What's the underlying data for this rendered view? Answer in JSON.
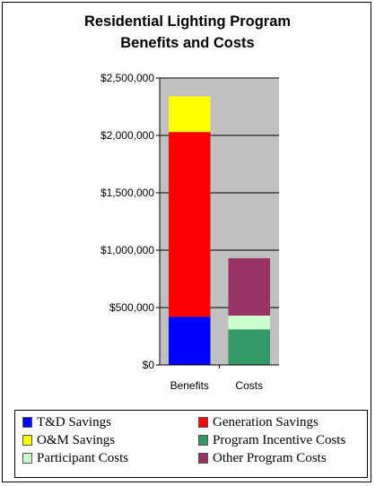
{
  "chart_data": {
    "type": "bar",
    "stacked": true,
    "title_lines": [
      "Residential Lighting Program",
      "Benefits and Costs"
    ],
    "categories": [
      "Benefits",
      "Costs"
    ],
    "y_ticks": [
      "$0",
      "$500,000",
      "$1,000,000",
      "$1,500,000",
      "$2,000,000",
      "$2,500,000"
    ],
    "ylim": [
      0,
      2500000
    ],
    "grid": true,
    "legend_position": "bottom",
    "series": [
      {
        "name": "T&D Savings",
        "color": "#0000ff",
        "values": [
          420000,
          0
        ]
      },
      {
        "name": "Generation Savings",
        "color": "#ff0000",
        "values": [
          1610000,
          0
        ]
      },
      {
        "name": "O&M Savings",
        "color": "#ffff00",
        "values": [
          310000,
          0
        ]
      },
      {
        "name": "Program Incentive Costs",
        "color": "#339966",
        "values": [
          0,
          310000
        ]
      },
      {
        "name": "Participant Costs",
        "color": "#ccffcc",
        "values": [
          0,
          120000
        ]
      },
      {
        "name": "Other Program Costs",
        "color": "#993366",
        "values": [
          0,
          500000
        ]
      }
    ]
  }
}
